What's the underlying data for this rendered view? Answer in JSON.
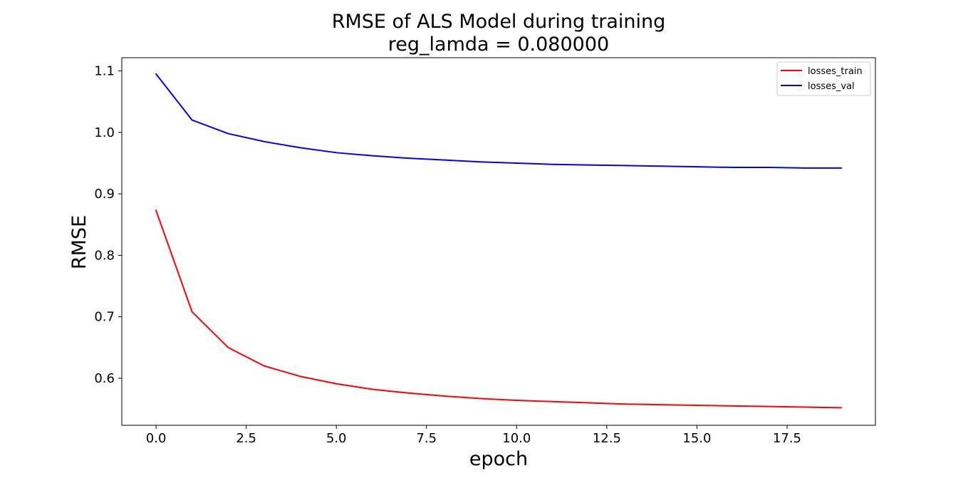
{
  "chart_data": {
    "type": "line",
    "title_line1": "RMSE of ALS Model during training",
    "title_line2": "reg_lamda = 0.080000",
    "xlabel": "epoch",
    "ylabel": "RMSE",
    "xlim": [
      -0.95,
      19.95
    ],
    "ylim": [
      0.5235,
      1.1215
    ],
    "xticks": [
      0.0,
      2.5,
      5.0,
      7.5,
      10.0,
      12.5,
      15.0,
      17.5
    ],
    "xtick_labels": [
      "0.0",
      "2.5",
      "5.0",
      "7.5",
      "10.0",
      "12.5",
      "15.0",
      "17.5"
    ],
    "yticks": [
      0.6,
      0.7,
      0.8,
      0.9,
      1.0,
      1.1
    ],
    "ytick_labels": [
      "0.6",
      "0.7",
      "0.8",
      "0.9",
      "1.0",
      "1.1"
    ],
    "grid": false,
    "legend_position": "top-right",
    "x": [
      0,
      1,
      2,
      3,
      4,
      5,
      6,
      7,
      8,
      9,
      10,
      11,
      12,
      13,
      14,
      15,
      16,
      17,
      18,
      19
    ],
    "series": [
      {
        "name": "losses_train",
        "color": "#ff0000",
        "values": [
          0.873,
          0.708,
          0.65,
          0.62,
          0.603,
          0.591,
          0.582,
          0.576,
          0.571,
          0.567,
          0.564,
          0.562,
          0.56,
          0.558,
          0.557,
          0.556,
          0.555,
          0.554,
          0.553,
          0.552
        ]
      },
      {
        "name": "losses_val",
        "color": "#0000ff",
        "values": [
          1.095,
          1.02,
          0.998,
          0.985,
          0.975,
          0.967,
          0.962,
          0.958,
          0.955,
          0.952,
          0.95,
          0.948,
          0.947,
          0.946,
          0.945,
          0.944,
          0.943,
          0.943,
          0.942,
          0.942
        ]
      }
    ]
  }
}
